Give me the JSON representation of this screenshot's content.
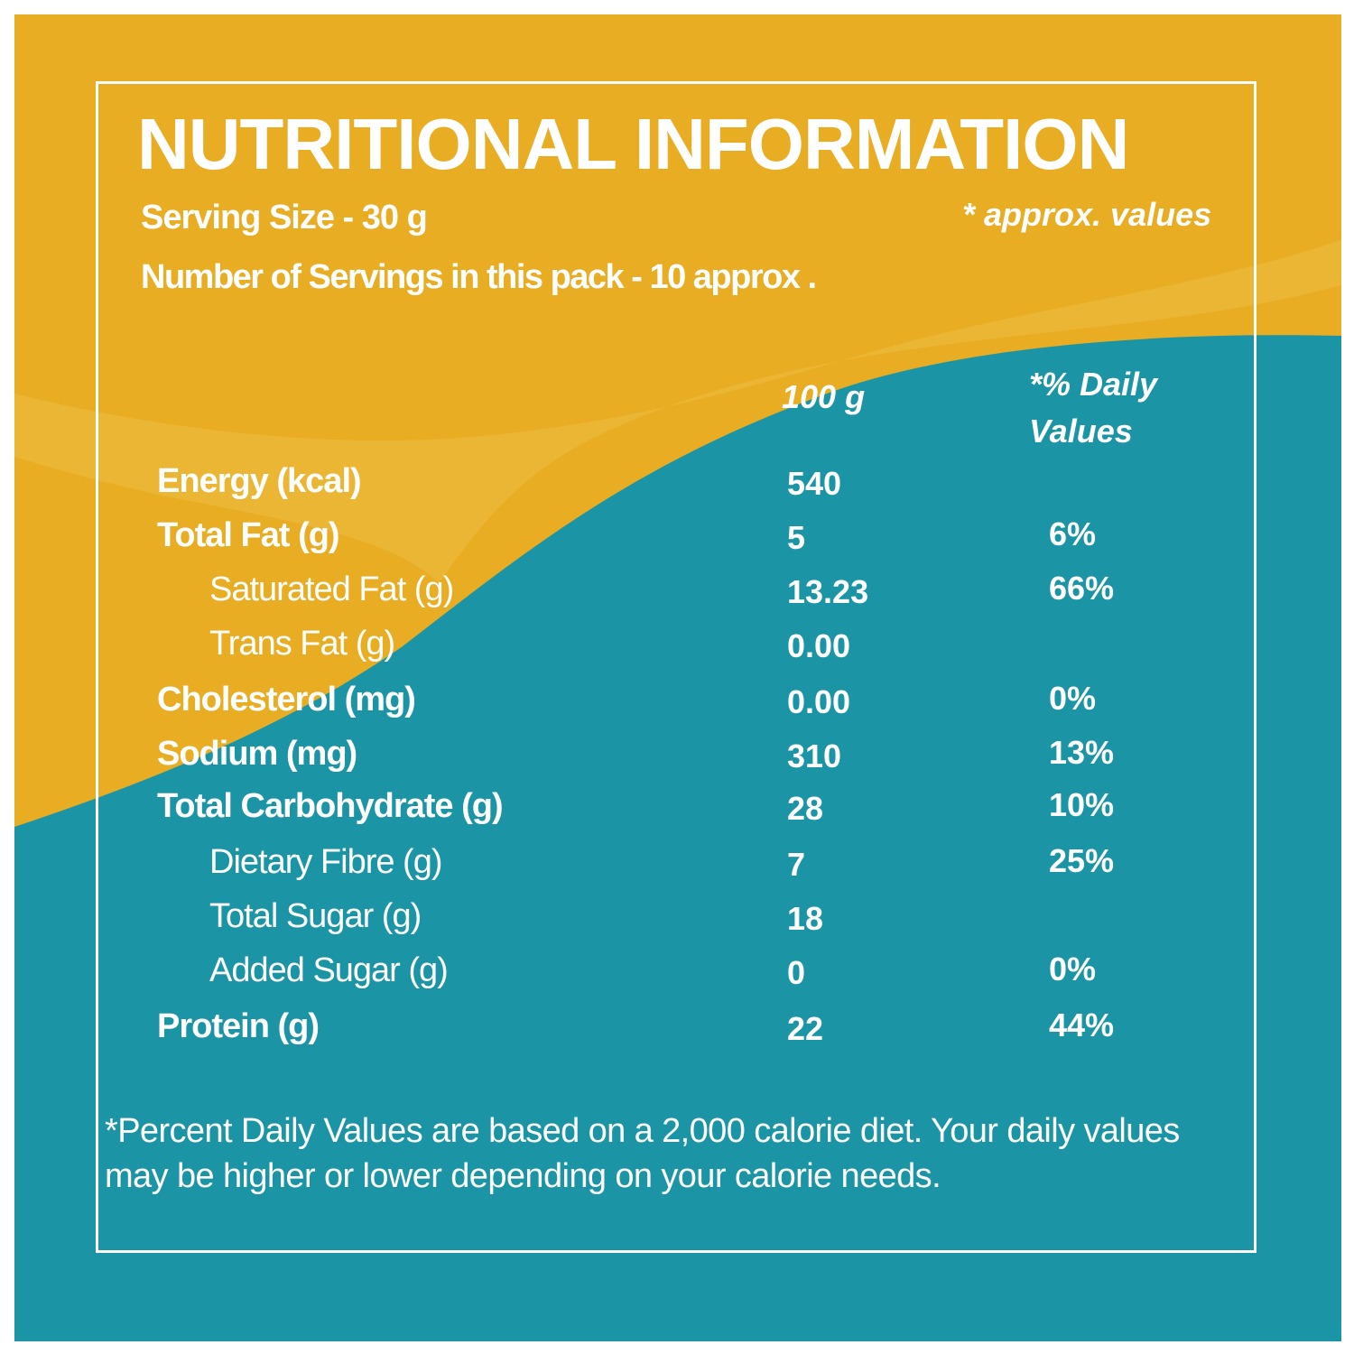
{
  "colors": {
    "yellow": "#E8AD22",
    "yellow_light": "#EEBE45",
    "teal": "#1B95A5",
    "text": "#FFFFFF"
  },
  "header": {
    "title": "NUTRITIONAL INFORMATION",
    "serving_size": "Serving Size - 30 g",
    "approx_note": "* approx. values",
    "servings": "Number of Servings in this pack - 10 approx ."
  },
  "columns": {
    "per_100g": "100 g",
    "daily_values": "*% Daily Values"
  },
  "nutrients": [
    {
      "label": "Energy (kcal)",
      "value": "540",
      "dv": "",
      "bold": true
    },
    {
      "label": "Total Fat (g)",
      "value": "5",
      "dv": "6%",
      "bold": true
    },
    {
      "label": "Saturated Fat (g)",
      "value": "13.23",
      "dv": "66%",
      "bold": false
    },
    {
      "label": "Trans Fat (g)",
      "value": "0.00",
      "dv": "",
      "bold": false
    },
    {
      "label": "Cholesterol (mg)",
      "value": "0.00",
      "dv": "0%",
      "bold": true
    },
    {
      "label": "Sodium (mg)",
      "value": "310",
      "dv": "13%",
      "bold": true
    },
    {
      "label": "Total Carbohydrate (g)",
      "value": "28",
      "dv": "10%",
      "bold": true
    },
    {
      "label": "Dietary Fibre (g)",
      "value": "7",
      "dv": "25%",
      "bold": false
    },
    {
      "label": "Total Sugar (g)",
      "value": "18",
      "dv": "",
      "bold": false
    },
    {
      "label": "Added Sugar (g)",
      "value": "0",
      "dv": "0%",
      "bold": false
    },
    {
      "label": "Protein (g)",
      "value": "22",
      "dv": "44%",
      "bold": true
    }
  ],
  "footnote": "*Percent Daily Values are based on a 2,000 calorie diet. Your daily values may be higher or lower depending on your calorie needs."
}
